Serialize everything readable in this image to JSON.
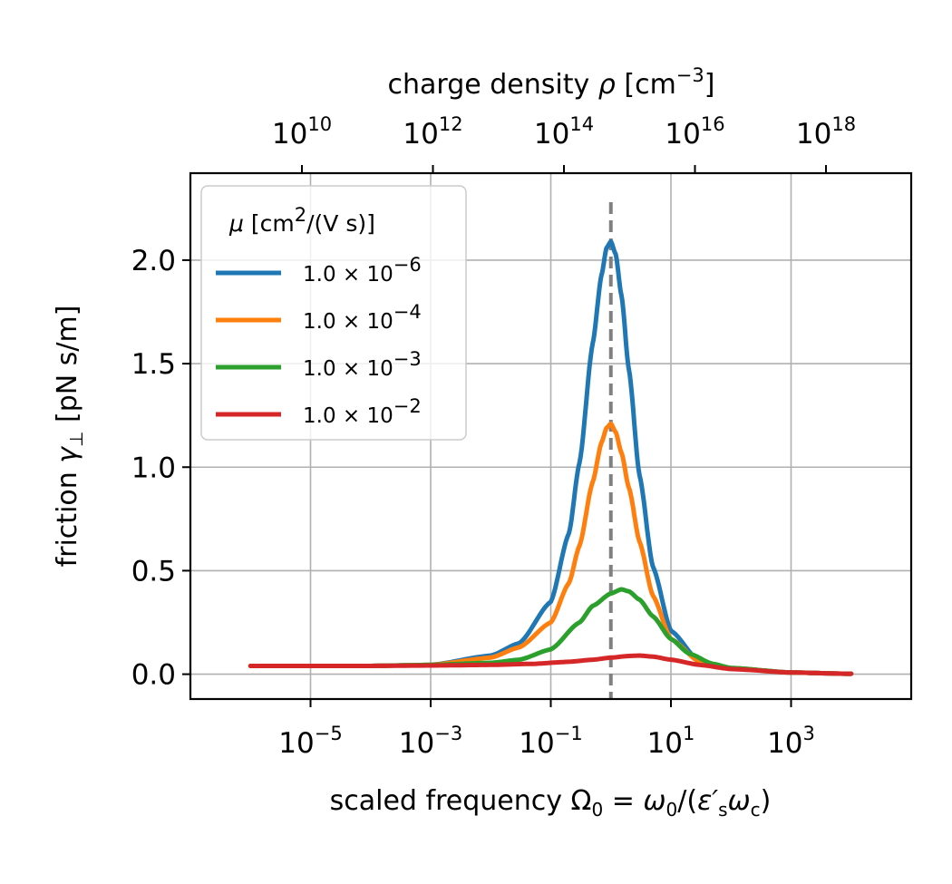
{
  "chart_data": {
    "type": "line",
    "x_axis": {
      "label": "scaled frequency Ω₀ = ω₀/(ε′ₛω꜀)",
      "scale": "log",
      "range": [
        1e-07,
        100000
      ],
      "ticks": [
        {
          "value": 1e-05,
          "base": "10",
          "exp": "−5"
        },
        {
          "value": 0.001,
          "base": "10",
          "exp": "−3"
        },
        {
          "value": 0.1,
          "base": "10",
          "exp": "−1"
        },
        {
          "value": 10,
          "base": "10",
          "exp": "1"
        },
        {
          "value": 1000,
          "base": "10",
          "exp": "3"
        }
      ]
    },
    "top_axis": {
      "label": "charge density ρ [cm⁻³]",
      "scale": "log",
      "ticks": [
        {
          "value": 10000000000.0,
          "base": "10",
          "exp": "10"
        },
        {
          "value": 1000000000000.0,
          "base": "10",
          "exp": "12"
        },
        {
          "value": 100000000000000.0,
          "base": "10",
          "exp": "14"
        },
        {
          "value": 1e+16,
          "base": "10",
          "exp": "16"
        },
        {
          "value": 1e+18,
          "base": "10",
          "exp": "18"
        }
      ]
    },
    "y_axis": {
      "label": "friction γ⊥ [pN s/m]",
      "range": [
        -0.12,
        2.42
      ],
      "ticks": [
        {
          "value": 0.0,
          "label": "0.0"
        },
        {
          "value": 0.5,
          "label": "0.5"
        },
        {
          "value": 1.0,
          "label": "1.0"
        },
        {
          "value": 1.5,
          "label": "1.5"
        },
        {
          "value": 2.0,
          "label": "2.0"
        }
      ]
    },
    "grid": true,
    "legend": {
      "title": "μ [cm²/(V s)]",
      "placement": "upper-left"
    },
    "vline": {
      "x": 1,
      "color": "#808080",
      "style": "dashed"
    },
    "series": [
      {
        "name": "1.0 × 10⁻⁶",
        "mantissa": "1.0 × 10",
        "exp": "−6",
        "color": "#1f77b4",
        "points": [
          [
            1e-06,
            0.04
          ],
          [
            0.0001,
            0.04
          ],
          [
            0.001,
            0.045
          ],
          [
            0.01,
            0.09
          ],
          [
            0.03,
            0.15
          ],
          [
            0.1,
            0.35
          ],
          [
            0.2,
            0.68
          ],
          [
            0.3,
            1.02
          ],
          [
            0.5,
            1.6
          ],
          [
            0.7,
            1.93
          ],
          [
            0.85,
            2.06
          ],
          [
            1.0,
            2.09
          ],
          [
            1.2,
            2.03
          ],
          [
            1.5,
            1.83
          ],
          [
            2,
            1.47
          ],
          [
            3,
            0.96
          ],
          [
            5,
            0.52
          ],
          [
            10,
            0.21
          ],
          [
            30,
            0.06
          ],
          [
            100,
            0.03
          ],
          [
            1000,
            0.008
          ],
          [
            10000,
            0.002
          ]
        ]
      },
      {
        "name": "1.0 × 10⁻⁴",
        "mantissa": "1.0 × 10",
        "exp": "−4",
        "color": "#ff7f0e",
        "points": [
          [
            1e-06,
            0.04
          ],
          [
            0.0001,
            0.04
          ],
          [
            0.001,
            0.045
          ],
          [
            0.01,
            0.08
          ],
          [
            0.03,
            0.13
          ],
          [
            0.1,
            0.25
          ],
          [
            0.2,
            0.44
          ],
          [
            0.3,
            0.62
          ],
          [
            0.5,
            0.93
          ],
          [
            0.7,
            1.12
          ],
          [
            0.85,
            1.19
          ],
          [
            1.0,
            1.21
          ],
          [
            1.2,
            1.17
          ],
          [
            1.5,
            1.07
          ],
          [
            2,
            0.9
          ],
          [
            3,
            0.64
          ],
          [
            5,
            0.38
          ],
          [
            10,
            0.17
          ],
          [
            30,
            0.06
          ],
          [
            100,
            0.03
          ],
          [
            1000,
            0.008
          ],
          [
            10000,
            0.002
          ]
        ]
      },
      {
        "name": "1.0 × 10⁻³",
        "mantissa": "1.0 × 10",
        "exp": "−3",
        "color": "#2ca02c",
        "points": [
          [
            1e-06,
            0.04
          ],
          [
            0.0001,
            0.04
          ],
          [
            0.001,
            0.045
          ],
          [
            0.01,
            0.055
          ],
          [
            0.03,
            0.07
          ],
          [
            0.1,
            0.12
          ],
          [
            0.3,
            0.25
          ],
          [
            0.5,
            0.33
          ],
          [
            1.0,
            0.39
          ],
          [
            1.5,
            0.41
          ],
          [
            2,
            0.4
          ],
          [
            3,
            0.36
          ],
          [
            5,
            0.28
          ],
          [
            10,
            0.17
          ],
          [
            20,
            0.1
          ],
          [
            50,
            0.05
          ],
          [
            100,
            0.03
          ],
          [
            1000,
            0.008
          ],
          [
            10000,
            0.002
          ]
        ]
      },
      {
        "name": "1.0 × 10⁻²",
        "mantissa": "1.0 × 10",
        "exp": "−2",
        "color": "#d62728",
        "points": [
          [
            1e-06,
            0.04
          ],
          [
            0.0001,
            0.04
          ],
          [
            0.001,
            0.042
          ],
          [
            0.01,
            0.045
          ],
          [
            0.05,
            0.05
          ],
          [
            0.2,
            0.06
          ],
          [
            0.5,
            0.07
          ],
          [
            1,
            0.08
          ],
          [
            2,
            0.088
          ],
          [
            3,
            0.09
          ],
          [
            5,
            0.085
          ],
          [
            10,
            0.07
          ],
          [
            30,
            0.045
          ],
          [
            100,
            0.025
          ],
          [
            1000,
            0.008
          ],
          [
            10000,
            0.002
          ]
        ]
      }
    ]
  }
}
